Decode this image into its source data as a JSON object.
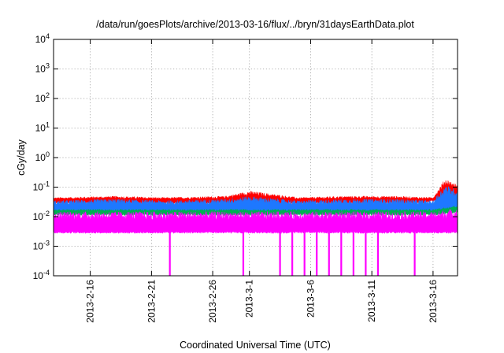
{
  "chart_data": {
    "type": "area",
    "title": "/data/run/goesPlots/archive/2013-03-16/flux/../bryn/31daysEarthData.plot",
    "xlabel": "Coordinated Universal Time (UTC)",
    "ylabel": "cGy/day",
    "y_scale": "log",
    "ylim": [
      0.0001,
      10000
    ],
    "y_ticks": [
      {
        "value": 0.0001,
        "base": "10",
        "exp": "-4"
      },
      {
        "value": 0.001,
        "base": "10",
        "exp": "-3"
      },
      {
        "value": 0.01,
        "base": "10",
        "exp": "-2"
      },
      {
        "value": 0.1,
        "base": "10",
        "exp": "-1"
      },
      {
        "value": 1,
        "base": "10",
        "exp": "0"
      },
      {
        "value": 10,
        "base": "10",
        "exp": "1"
      },
      {
        "value": 100,
        "base": "10",
        "exp": "2"
      },
      {
        "value": 1000,
        "base": "10",
        "exp": "3"
      },
      {
        "value": 10000,
        "base": "10",
        "exp": "4"
      }
    ],
    "xlim": [
      "2013-02-13",
      "2013-03-18"
    ],
    "x_ticks": [
      "2013-2-16",
      "2013-2-21",
      "2013-2-26",
      "2013-3-1",
      "2013-3-6",
      "2013-3-11",
      "2013-3-16"
    ],
    "x_tick_dates": [
      "2013-02-16",
      "2013-02-21",
      "2013-02-26",
      "2013-03-01",
      "2013-03-06",
      "2013-03-11",
      "2013-03-16"
    ],
    "grid": true,
    "series": [
      {
        "color": "#ff0000",
        "peak": {
          "date": [
            "2013-02-13",
            "2013-02-18",
            "2013-02-22",
            "2013-02-27",
            "2013-03-01",
            "2013-03-05",
            "2013-03-09",
            "2013-03-13",
            "2013-03-16",
            "2013-03-17",
            "2013-03-18"
          ],
          "value": [
            0.045,
            0.05,
            0.045,
            0.05,
            0.075,
            0.045,
            0.05,
            0.05,
            0.045,
            0.2,
            0.12
          ]
        },
        "base": {
          "date": [
            "2013-02-13",
            "2013-03-15",
            "2013-03-18"
          ],
          "value": [
            0.03,
            0.03,
            0.05
          ]
        }
      },
      {
        "color": "#1e78ff",
        "peak": {
          "date": [
            "2013-02-13",
            "2013-02-18",
            "2013-02-22",
            "2013-02-27",
            "2013-03-01",
            "2013-03-05",
            "2013-03-09",
            "2013-03-13",
            "2013-03-16",
            "2013-03-17",
            "2013-03-18"
          ],
          "value": [
            0.035,
            0.04,
            0.035,
            0.04,
            0.05,
            0.035,
            0.04,
            0.04,
            0.035,
            0.12,
            0.08
          ]
        },
        "base": {
          "date": [
            "2013-02-13",
            "2013-03-15",
            "2013-03-18"
          ],
          "value": [
            0.015,
            0.015,
            0.02
          ]
        }
      },
      {
        "color": "#00b050",
        "peak": {
          "date": [
            "2013-02-13",
            "2013-03-16",
            "2013-03-18"
          ],
          "value": [
            0.018,
            0.018,
            0.025
          ]
        },
        "base": {
          "date": [
            "2013-02-13",
            "2013-03-16",
            "2013-03-18"
          ],
          "value": [
            0.012,
            0.012,
            0.015
          ]
        }
      },
      {
        "color": "#ff00ff",
        "peak": {
          "date": [
            "2013-02-13",
            "2013-03-16",
            "2013-03-18"
          ],
          "value": [
            0.015,
            0.015,
            0.02
          ]
        },
        "base": {
          "date": [
            "2013-02-13",
            "2013-03-18"
          ],
          "value": [
            0.003,
            0.003
          ]
        },
        "dropouts": [
          "2013-02-22",
          "2013-02-28",
          "2013-03-03",
          "2013-03-04",
          "2013-03-05",
          "2013-03-06",
          "2013-03-07",
          "2013-03-08",
          "2013-03-09",
          "2013-03-10",
          "2013-03-11",
          "2013-03-14"
        ]
      }
    ]
  }
}
